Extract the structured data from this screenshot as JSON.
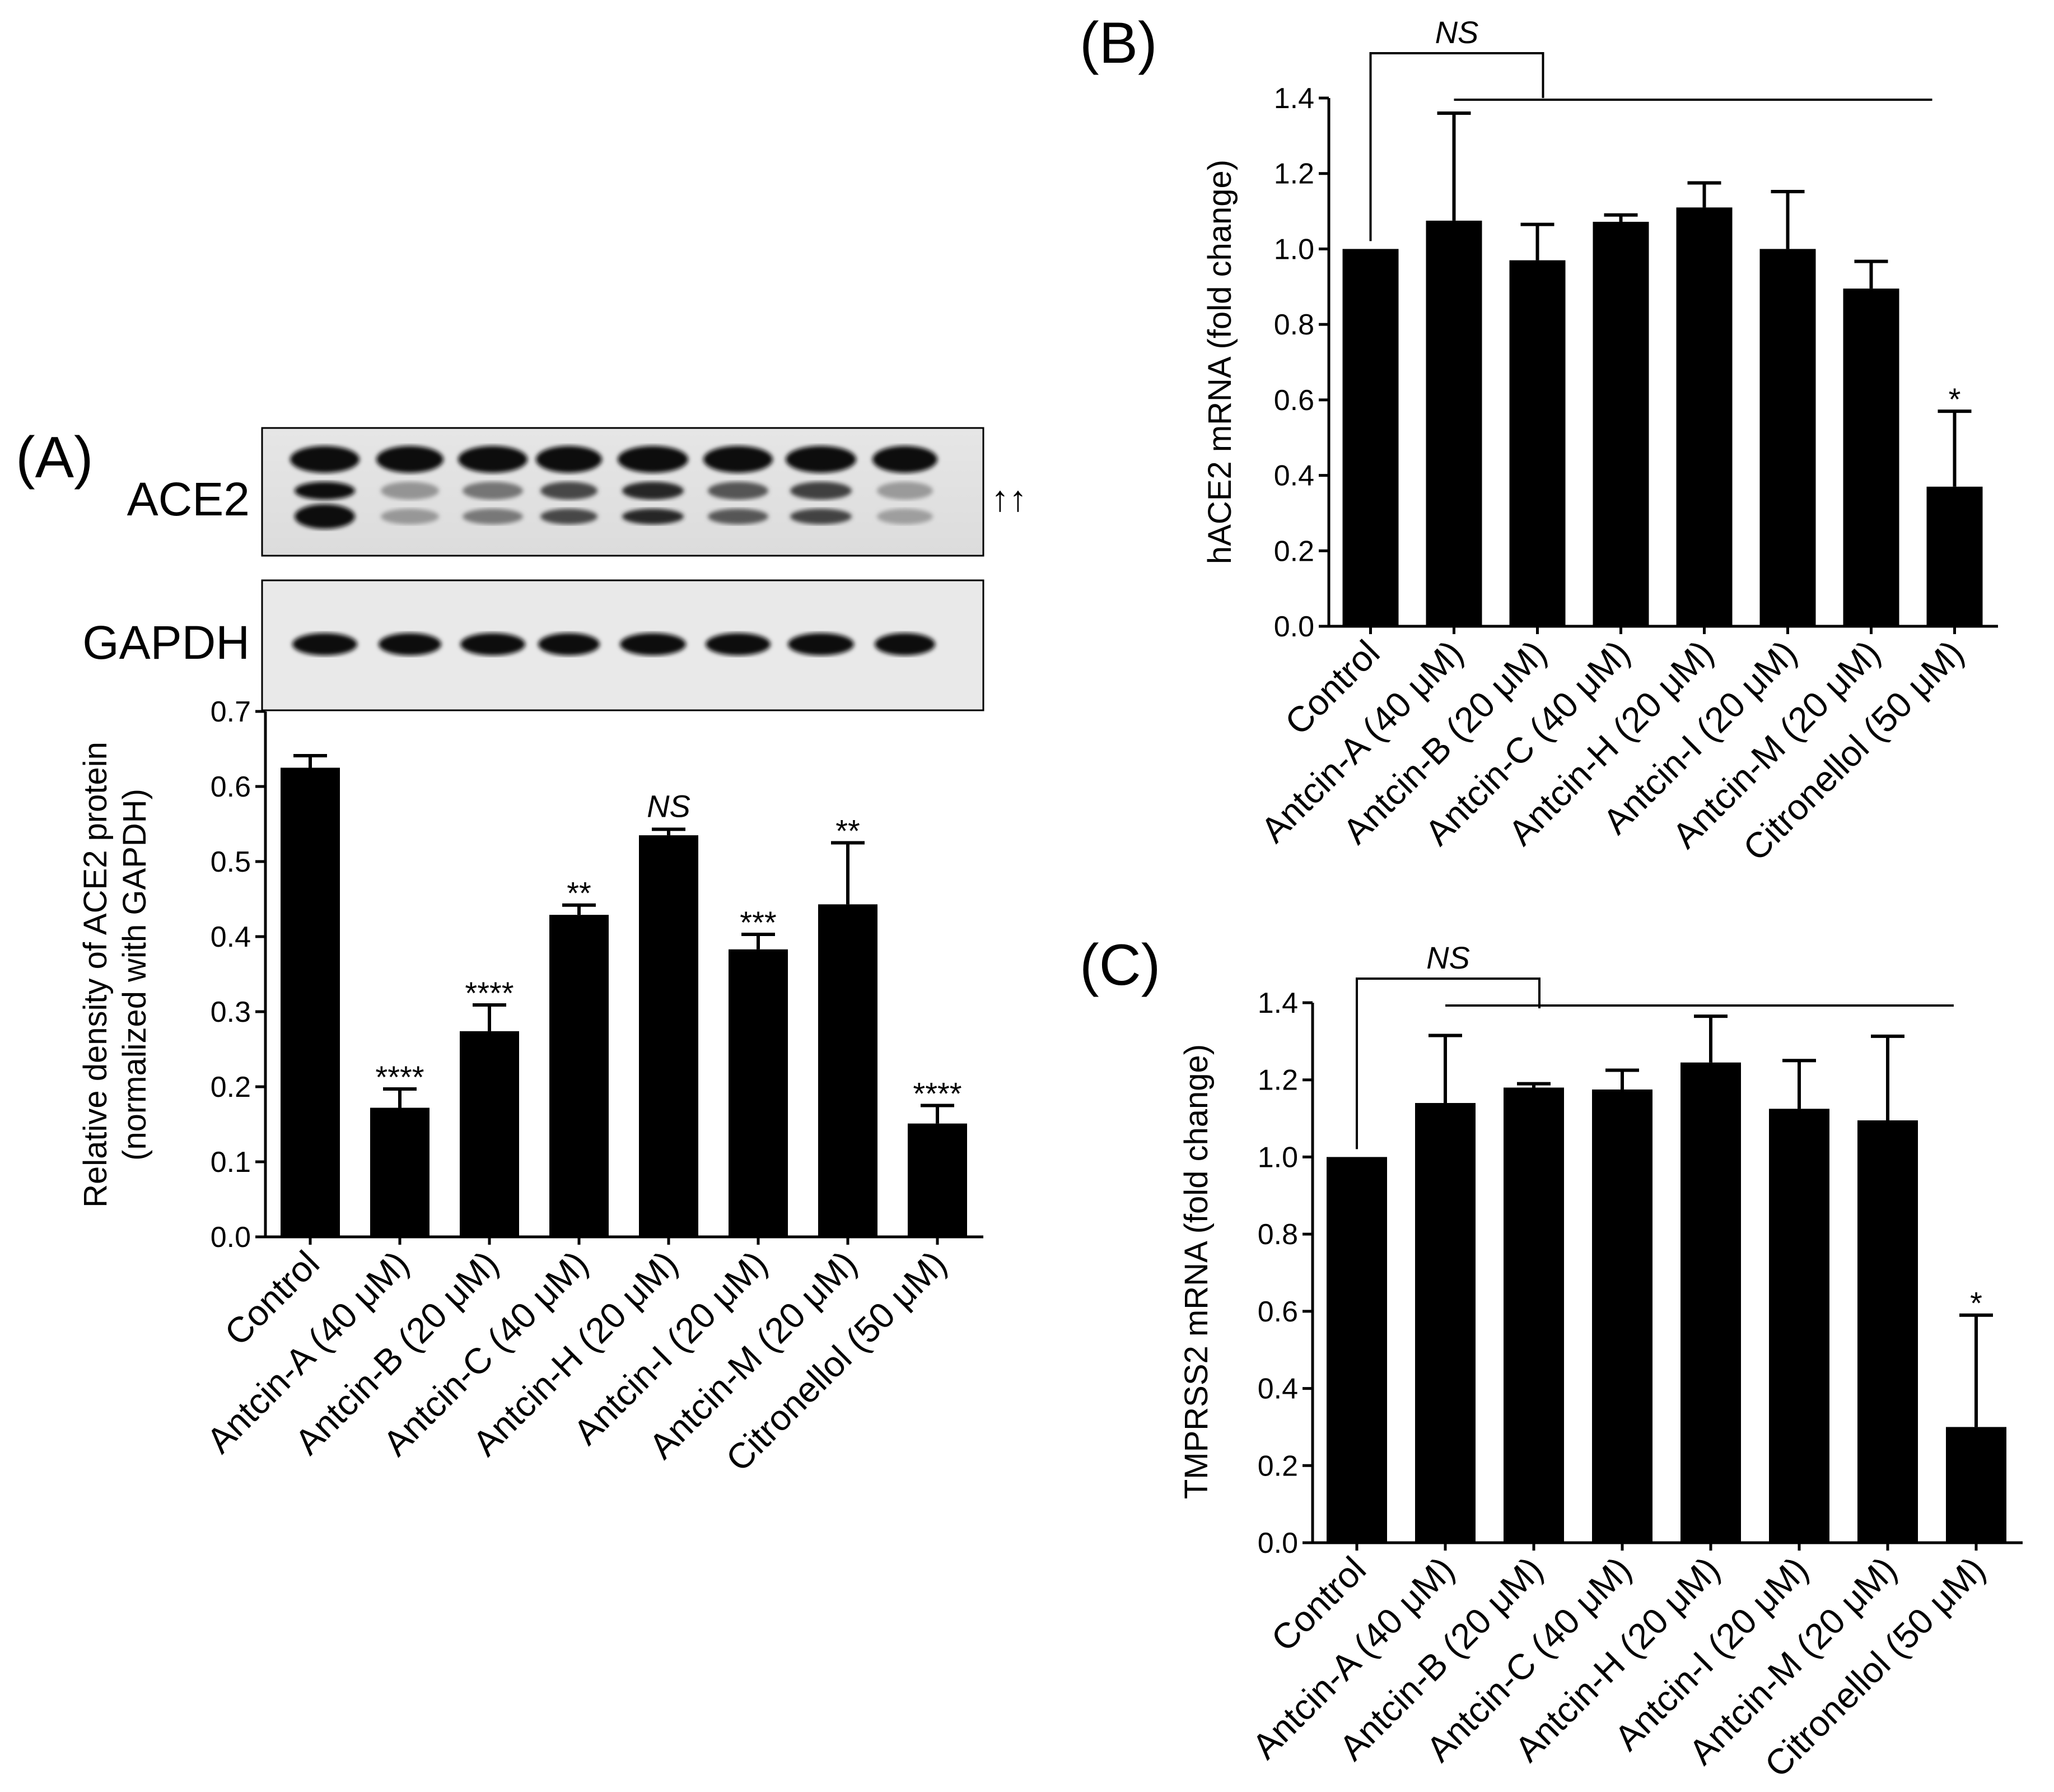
{
  "chart_data": [
    {
      "panel": "(A)",
      "type": "bar",
      "ylabel_lines": [
        "Relative density of ACE2 protein",
        "(normalized with GAPDH)"
      ],
      "ylim": [
        0,
        0.7
      ],
      "yticks": [
        "0.0",
        "0.1",
        "0.2",
        "0.3",
        "0.4",
        "0.5",
        "0.6",
        "0.7"
      ],
      "categories": [
        "Control",
        "Antcin-A (40 μM)",
        "Antcin-B (20 μM)",
        "Antcin-C (40 μM)",
        "Antcin-H (20 μM)",
        "Antcin-I (20 μM)",
        "Antcin-M (20 μM)",
        "Citronellol (50 μM)"
      ],
      "values": [
        0.625,
        0.172,
        0.274,
        0.429,
        0.535,
        0.383,
        0.443,
        0.151
      ],
      "errors": [
        0.016,
        0.025,
        0.035,
        0.013,
        0.008,
        0.02,
        0.082,
        0.024
      ],
      "significance": [
        "",
        "****",
        "****",
        "**",
        "NS",
        "***",
        "**",
        "****"
      ],
      "blot": {
        "ace2_label": "ACE2",
        "gapdh_label": "GAPDH",
        "arrows": "↑↑"
      }
    },
    {
      "panel": "(B)",
      "type": "bar",
      "ylabel": "hACE2 mRNA (fold change)",
      "ylim": [
        0,
        1.4
      ],
      "yticks": [
        "0.0",
        "0.2",
        "0.4",
        "0.6",
        "0.8",
        "1.0",
        "1.2",
        "1.4"
      ],
      "categories": [
        "Control",
        "Antcin-A (40 μM)",
        "Antcin-B (20 μM)",
        "Antcin-C (40 μM)",
        "Antcin-H (20 μM)",
        "Antcin-I (20 μM)",
        "Antcin-M (20 μM)",
        "Citronellol (50 μM)"
      ],
      "values": [
        1.0,
        1.075,
        0.97,
        1.072,
        1.11,
        1.0,
        0.895,
        0.37
      ],
      "errors": [
        0.0,
        0.285,
        0.095,
        0.018,
        0.065,
        0.152,
        0.072,
        0.2
      ],
      "significance": [
        "",
        "",
        "",
        "",
        "",
        "",
        "",
        "*"
      ],
      "bracket_label": "NS"
    },
    {
      "panel": "(C)",
      "type": "bar",
      "ylabel": "TMPRSS2 mRNA (fold change)",
      "ylim": [
        0,
        1.4
      ],
      "yticks": [
        "0.0",
        "0.2",
        "0.4",
        "0.6",
        "0.8",
        "1.0",
        "1.2",
        "1.4"
      ],
      "categories": [
        "Control",
        "Antcin-A (40 μM)",
        "Antcin-B (20 μM)",
        "Antcin-C (40 μM)",
        "Antcin-H (20 μM)",
        "Antcin-I (20 μM)",
        "Antcin-M (20 μM)",
        "Citronellol (50 μM)"
      ],
      "values": [
        1.0,
        1.14,
        1.18,
        1.175,
        1.245,
        1.125,
        1.095,
        0.3
      ],
      "errors": [
        0.0,
        0.175,
        0.01,
        0.05,
        0.12,
        0.125,
        0.218,
        0.29
      ],
      "significance": [
        "",
        "",
        "",
        "",
        "",
        "",
        "",
        "*"
      ],
      "bracket_label": "NS"
    }
  ]
}
